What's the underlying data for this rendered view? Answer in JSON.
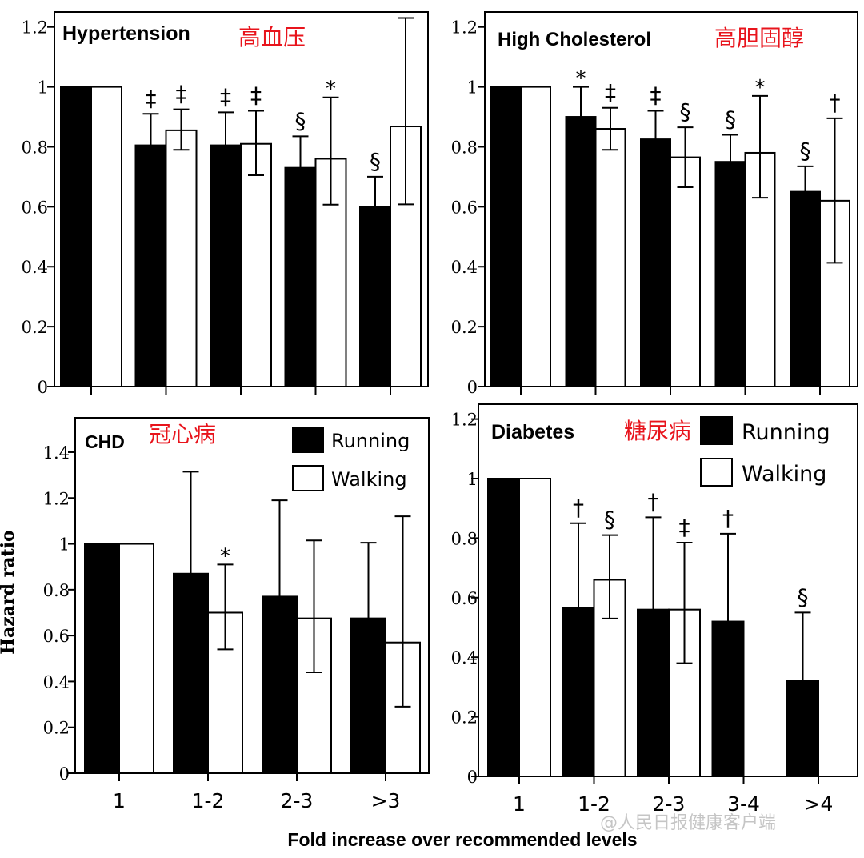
{
  "figure": {
    "y_axis_label": "Hazard ratio",
    "x_axis_label": "Fold increase over recommended levels",
    "watermark": "@人民日报健康客户端",
    "colors": {
      "running": "#000000",
      "walking": "#ffffff",
      "cn_title": "#e8141c"
    }
  },
  "chart_data": [
    {
      "type": "bar",
      "title": "Hypertension",
      "title_cn": "高血压",
      "categories": [
        "",
        "",
        "",
        "",
        ""
      ],
      "ylim": [
        0,
        1.25
      ],
      "yticks": [
        "0",
        "0.2",
        "0.4",
        "0.6",
        "0.8",
        "1",
        "1.2"
      ],
      "series": [
        {
          "name": "Running",
          "values": [
            1.0,
            0.805,
            0.805,
            0.73,
            0.6
          ],
          "err_up": [
            0,
            0.91,
            0.915,
            0.835,
            0.7
          ],
          "err_down": [
            0,
            0,
            0,
            0,
            0
          ],
          "marks": [
            "",
            "‡",
            "‡",
            "§",
            "§"
          ]
        },
        {
          "name": "Walking",
          "values": [
            1.0,
            0.855,
            0.81,
            0.76,
            0.868
          ],
          "err_up": [
            0,
            0.925,
            0.92,
            0.965,
            1.23
          ],
          "err_down": [
            0,
            0.79,
            0.705,
            0.607,
            0.608
          ],
          "marks": [
            "",
            "‡",
            "‡",
            "*",
            ""
          ]
        }
      ]
    },
    {
      "type": "bar",
      "title": "High Cholesterol",
      "title_cn": "高胆固醇",
      "categories": [
        "",
        "",
        "",
        "",
        ""
      ],
      "ylim": [
        0,
        1.25
      ],
      "yticks": [
        "0",
        "0.2",
        "0.4",
        "0.6",
        "0.8",
        "1",
        "1.2"
      ],
      "series": [
        {
          "name": "Running",
          "values": [
            1.0,
            0.9,
            0.825,
            0.75,
            0.65
          ],
          "err_up": [
            0,
            1.0,
            0.92,
            0.84,
            0.735
          ],
          "err_down": [
            0,
            0,
            0,
            0,
            0
          ],
          "marks": [
            "",
            "*",
            "‡",
            "§",
            "§"
          ]
        },
        {
          "name": "Walking",
          "values": [
            1.0,
            0.86,
            0.765,
            0.78,
            0.62
          ],
          "err_up": [
            0,
            0.93,
            0.865,
            0.97,
            0.895
          ],
          "err_down": [
            0,
            0.79,
            0.665,
            0.63,
            0.413
          ],
          "marks": [
            "",
            "‡",
            "§",
            "*",
            "†"
          ]
        }
      ]
    },
    {
      "type": "bar",
      "title": "CHD",
      "title_cn": "冠心病",
      "categories": [
        "1",
        "1-2",
        "2-3",
        ">3"
      ],
      "ylim": [
        0,
        1.55
      ],
      "yticks": [
        "0",
        "0.2",
        "0.4",
        "0.6",
        "0.8",
        "1",
        "1.2",
        "1.4"
      ],
      "legend": [
        "Running",
        "Walking"
      ],
      "series": [
        {
          "name": "Running",
          "values": [
            1.0,
            0.87,
            0.77,
            0.675
          ],
          "err_up": [
            0,
            1.315,
            1.19,
            1.005
          ],
          "err_down": [
            0,
            0,
            0,
            0
          ],
          "marks": [
            "",
            "",
            "",
            ""
          ]
        },
        {
          "name": "Walking",
          "values": [
            1.0,
            0.7,
            0.675,
            0.57
          ],
          "err_up": [
            0,
            0.91,
            1.015,
            1.12
          ],
          "err_down": [
            0,
            0.54,
            0.44,
            0.29
          ],
          "marks": [
            "",
            "*",
            "",
            ""
          ]
        }
      ]
    },
    {
      "type": "bar",
      "title": "Diabetes",
      "title_cn": "糖尿病",
      "categories": [
        "1",
        "1-2",
        "2-3",
        "3-4",
        ">4"
      ],
      "ylim": [
        0,
        1.25
      ],
      "yticks": [
        "0",
        "0.2",
        "0.4",
        "0.6",
        "0.8",
        "1",
        "1.2"
      ],
      "legend": [
        "Running",
        "Walking"
      ],
      "series": [
        {
          "name": "Running",
          "values": [
            1.0,
            0.565,
            0.56,
            0.52,
            0.32
          ],
          "err_up": [
            0,
            0.85,
            0.87,
            0.815,
            0.55
          ],
          "err_down": [
            0,
            0,
            0,
            0,
            0
          ],
          "marks": [
            "",
            "†",
            "†",
            "†",
            "§"
          ]
        },
        {
          "name": "Walking",
          "values": [
            1.0,
            0.66,
            0.56,
            null,
            null
          ],
          "err_up": [
            0,
            0.81,
            0.785,
            null,
            null
          ],
          "err_down": [
            0,
            0.53,
            0.38,
            null,
            null
          ],
          "marks": [
            "",
            "§",
            "‡",
            "",
            ""
          ]
        }
      ]
    }
  ]
}
